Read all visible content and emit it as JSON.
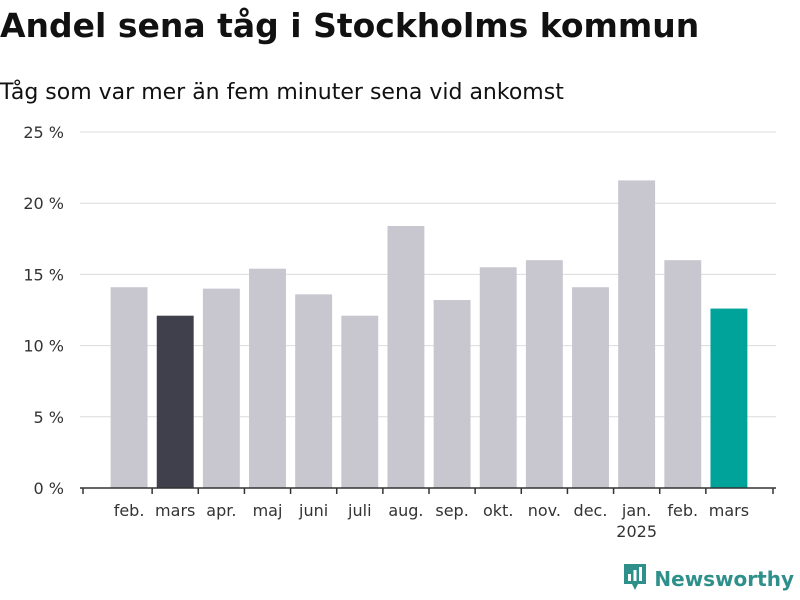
{
  "header": {
    "title": "Andel sena tåg i Stockholms kommun",
    "subtitle": "Tåg som var mer än fem minuter sena vid ankomst"
  },
  "brand": {
    "name": "Newsworthy",
    "icon": "newsworthy-logo-icon",
    "color": "#2f8f8a"
  },
  "colors": {
    "default_bar": "#c8c7d0",
    "last_year_bar": "#403f4c",
    "current_bar": "#00a39a",
    "grid": "#dcdcdc",
    "axis": "#333333"
  },
  "chart_data": {
    "type": "bar",
    "title": "Andel sena tåg i Stockholms kommun",
    "subtitle": "Tåg som var mer än fem minuter sena vid ankomst",
    "categories": [
      "feb.",
      "mars",
      "apr.",
      "maj",
      "juni",
      "juli",
      "aug.",
      "sep.",
      "okt.",
      "nov.",
      "dec.",
      "jan.",
      "feb.",
      "mars"
    ],
    "year_labels": [
      "",
      "",
      "",
      "",
      "",
      "",
      "",
      "",
      "",
      "",
      "",
      "2025",
      "",
      ""
    ],
    "values": [
      14.1,
      12.1,
      14.0,
      15.4,
      13.6,
      12.1,
      18.4,
      13.2,
      15.5,
      16.0,
      14.1,
      21.6,
      16.0,
      12.6
    ],
    "highlight": [
      "default",
      "last_year",
      "default",
      "default",
      "default",
      "default",
      "default",
      "default",
      "default",
      "default",
      "default",
      "default",
      "default",
      "current"
    ],
    "y_ticks": [
      "0 %",
      "5 %",
      "10 %",
      "15 %",
      "20 %",
      "25 %"
    ],
    "y_tick_values": [
      0,
      5,
      10,
      15,
      20,
      25
    ],
    "ylim": [
      0,
      25
    ],
    "xlabel": "",
    "ylabel": "",
    "grid": true,
    "legend": "none"
  }
}
